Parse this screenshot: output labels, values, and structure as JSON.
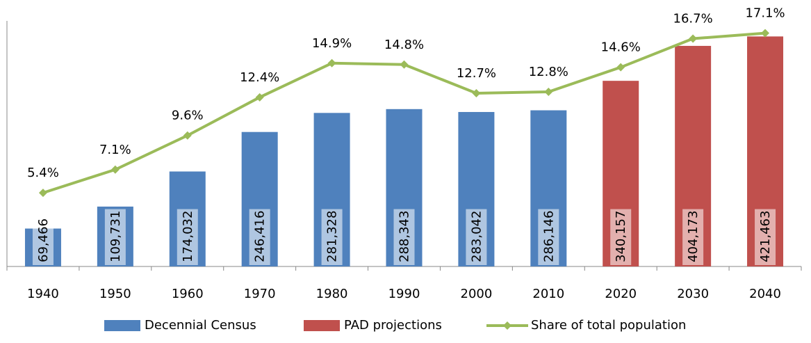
{
  "chart_data": {
    "type": "bar",
    "categories": [
      "1940",
      "1950",
      "1960",
      "1970",
      "1980",
      "1990",
      "2000",
      "2010",
      "2020",
      "2030",
      "2040"
    ],
    "series": [
      {
        "name": "Decennial Census",
        "type": "bar",
        "color": "#4f81bd",
        "values": [
          69466,
          109731,
          174032,
          246416,
          281328,
          288343,
          283042,
          286146,
          null,
          null,
          null
        ],
        "value_labels": [
          "69,466",
          "109,731",
          "174,032",
          "246,416",
          "281,328",
          "288,343",
          "283,042",
          "286,146",
          null,
          null,
          null
        ]
      },
      {
        "name": "PAD projections",
        "type": "bar",
        "color": "#c0504d",
        "values": [
          null,
          null,
          null,
          null,
          null,
          null,
          null,
          null,
          340157,
          404173,
          421463
        ],
        "value_labels": [
          null,
          null,
          null,
          null,
          null,
          null,
          null,
          null,
          "340,157",
          "404,173",
          "421,463"
        ]
      },
      {
        "name": "Share of total population",
        "type": "line",
        "axis": "y2",
        "color": "#9bbb59",
        "values": [
          5.4,
          7.1,
          9.6,
          12.4,
          14.9,
          14.8,
          12.7,
          12.8,
          14.6,
          16.7,
          17.1
        ],
        "value_labels": [
          "5.4%",
          "7.1%",
          "9.6%",
          "12.4%",
          "14.9%",
          "14.8%",
          "12.7%",
          "12.8%",
          "14.6%",
          "16.7%",
          "17.1%"
        ]
      }
    ],
    "ylim": [
      0,
      450000
    ],
    "y2lim": [
      0,
      18
    ],
    "legend": "bottom"
  }
}
